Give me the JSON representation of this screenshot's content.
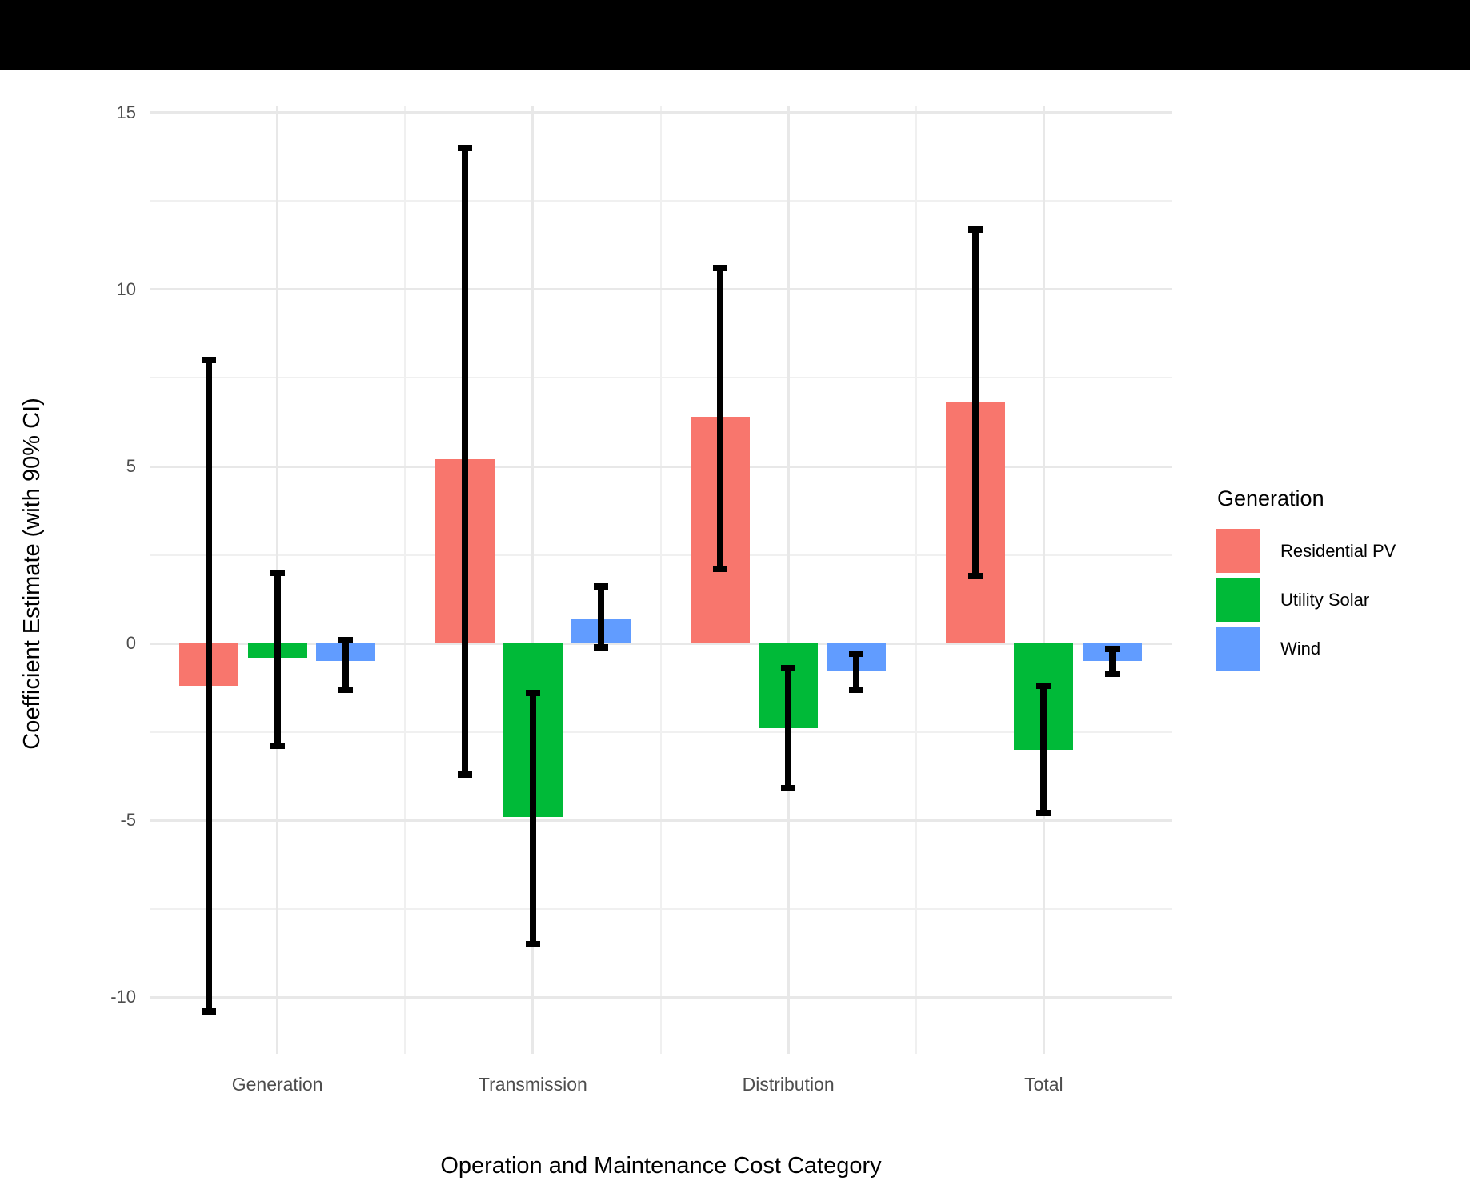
{
  "figure": {
    "background_color": "#FFFFFF",
    "top_band_color": "#000000"
  },
  "y_axis": {
    "title": "Coefficient Estimate (with 90% CI)",
    "tick_labels": [
      "15",
      "10",
      "5",
      "0",
      "-5",
      "-10"
    ],
    "tick_values": [
      15,
      10,
      5,
      0,
      -5,
      -10
    ],
    "minor_tick_values": [
      12.5,
      7.5,
      2.5,
      -2.5,
      -7.5
    ],
    "range": [
      -11.6,
      15.2
    ],
    "text_color": "#4D4D4D"
  },
  "x_axis": {
    "title": "Operation and Maintenance Cost Category",
    "categories": [
      "Generation",
      "Transmission",
      "Distribution",
      "Total"
    ],
    "text_color": "#4D4D4D"
  },
  "legend": {
    "title": "Generation",
    "items": [
      {
        "label": "Residential PV",
        "color": "#F8766D"
      },
      {
        "label": "Utility Solar",
        "color": "#00BA38"
      },
      {
        "label": "Wind",
        "color": "#619CFF"
      }
    ]
  },
  "grid": {
    "major_color": "#E8E8E8",
    "minor_color": "#F0F0F0"
  },
  "error_bar_color": "#000000",
  "chart_data": {
    "type": "bar",
    "title": "",
    "xlabel": "Operation and Maintenance Cost Category",
    "ylabel": "Coefficient Estimate (with 90% CI)",
    "categories": [
      "Generation",
      "Transmission",
      "Distribution",
      "Total"
    ],
    "series": [
      {
        "name": "Residential PV",
        "color": "#F8766D",
        "values": [
          -1.2,
          5.2,
          6.4,
          6.8
        ],
        "ci_low": [
          -10.4,
          -3.7,
          2.1,
          1.9
        ],
        "ci_high": [
          8.0,
          14.0,
          10.6,
          11.7
        ]
      },
      {
        "name": "Utility Solar",
        "color": "#00BA38",
        "values": [
          -0.4,
          -4.9,
          -2.4,
          -3.0
        ],
        "ci_low": [
          -2.9,
          -8.5,
          -4.1,
          -4.8
        ],
        "ci_high": [
          2.0,
          -1.4,
          -0.7,
          -1.2
        ]
      },
      {
        "name": "Wind",
        "color": "#619CFF",
        "values": [
          -0.5,
          0.7,
          -0.8,
          -0.5
        ],
        "ci_low": [
          -1.3,
          -0.1,
          -1.3,
          -0.85
        ],
        "ci_high": [
          0.1,
          1.6,
          -0.3,
          -0.15
        ]
      }
    ],
    "ci_level": "90%",
    "ylim": [
      -11.6,
      15.2
    ],
    "grid": true,
    "legend_position": "right",
    "legend_title": "Generation"
  }
}
